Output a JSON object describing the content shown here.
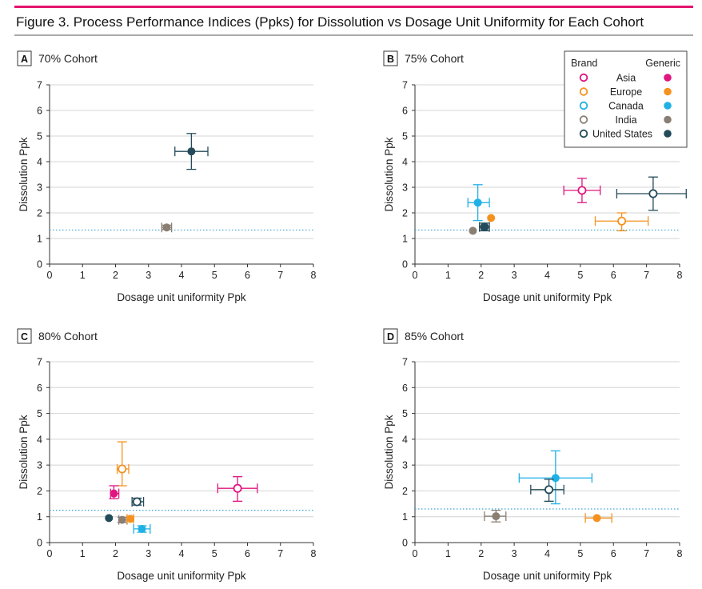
{
  "figure": {
    "title": "Figure 3. Process Performance Indices (Ppks) for Dissolution vs Dosage Unit Uniformity for Each Cohort",
    "accent_color": "#e5146e"
  },
  "legend": {
    "brand_header": "Brand",
    "generic_header": "Generic",
    "entries": [
      {
        "region": "Asia",
        "color": "#e0157f"
      },
      {
        "region": "Europe",
        "color": "#f5921f"
      },
      {
        "region": "Canada",
        "color": "#1fb1e6"
      },
      {
        "region": "India",
        "color": "#8a7f74"
      },
      {
        "region": "United States",
        "color": "#244b5a"
      }
    ]
  },
  "chart_data": [
    {
      "type": "scatter",
      "panel_letter": "A",
      "title": "70% Cohort",
      "xlabel": "Dosage unit uniformity Ppk",
      "ylabel": "Dissolution Ppk",
      "xlim": [
        0,
        8
      ],
      "ylim": [
        0,
        7
      ],
      "xticks": [
        "0",
        "1",
        "2",
        "3",
        "4",
        "5",
        "6",
        "7",
        "8"
      ],
      "yticks": [
        "0",
        "1",
        "2",
        "3",
        "4",
        "5",
        "6",
        "7"
      ],
      "reference_line_y": 1.33,
      "points": [
        {
          "region": "United States",
          "type": "generic",
          "x": 4.3,
          "y": 4.4,
          "xerr": [
            3.8,
            4.8
          ],
          "yerr": [
            3.7,
            5.1
          ]
        },
        {
          "region": "India",
          "type": "generic",
          "x": 3.55,
          "y": 1.43,
          "xerr": [
            3.4,
            3.7
          ],
          "yerr": [
            1.35,
            1.52
          ]
        }
      ]
    },
    {
      "type": "scatter",
      "panel_letter": "B",
      "title": "75% Cohort",
      "xlabel": "Dosage unit uniformity Ppk",
      "ylabel": "Dissolution Ppk",
      "xlim": [
        0,
        8
      ],
      "ylim": [
        0,
        7
      ],
      "xticks": [
        "0",
        "1",
        "2",
        "3",
        "4",
        "5",
        "6",
        "7",
        "8"
      ],
      "yticks": [
        "0",
        "1",
        "2",
        "3",
        "4",
        "5",
        "6",
        "7"
      ],
      "reference_line_y": 1.33,
      "points": [
        {
          "region": "Asia",
          "type": "brand",
          "x": 5.05,
          "y": 2.88,
          "xerr": [
            4.5,
            5.6
          ],
          "yerr": [
            2.4,
            3.35
          ]
        },
        {
          "region": "United States",
          "type": "brand",
          "x": 7.2,
          "y": 2.75,
          "xerr": [
            6.1,
            8.2
          ],
          "yerr": [
            2.1,
            3.4
          ]
        },
        {
          "region": "Europe",
          "type": "brand",
          "x": 6.25,
          "y": 1.68,
          "xerr": [
            5.45,
            7.05
          ],
          "yerr": [
            1.3,
            2.0
          ]
        },
        {
          "region": "Canada",
          "type": "generic",
          "x": 1.9,
          "y": 2.4,
          "xerr": [
            1.6,
            2.25
          ],
          "yerr": [
            1.7,
            3.1
          ]
        },
        {
          "region": "Europe",
          "type": "generic",
          "x": 2.3,
          "y": 1.8,
          "xerr": null,
          "yerr": null
        },
        {
          "region": "United States",
          "type": "brand",
          "x": 2.1,
          "y": 1.45,
          "xerr": [
            1.95,
            2.25
          ],
          "yerr": [
            1.3,
            1.6
          ]
        },
        {
          "region": "United States",
          "type": "generic",
          "x": 2.1,
          "y": 1.45,
          "xerr": null,
          "yerr": null
        },
        {
          "region": "India",
          "type": "generic",
          "x": 1.75,
          "y": 1.3,
          "xerr": null,
          "yerr": null
        }
      ]
    },
    {
      "type": "scatter",
      "panel_letter": "C",
      "title": "80% Cohort",
      "xlabel": "Dosage unit uniformity Ppk",
      "ylabel": "Dissolution Ppk",
      "xlim": [
        0,
        8
      ],
      "ylim": [
        0,
        7
      ],
      "xticks": [
        "0",
        "1",
        "2",
        "3",
        "4",
        "5",
        "6",
        "7",
        "8"
      ],
      "yticks": [
        "0",
        "1",
        "2",
        "3",
        "4",
        "5",
        "6",
        "7"
      ],
      "reference_line_y": 1.25,
      "points": [
        {
          "region": "Asia",
          "type": "brand",
          "x": 5.7,
          "y": 2.1,
          "xerr": [
            5.1,
            6.3
          ],
          "yerr": [
            1.6,
            2.55
          ]
        },
        {
          "region": "Europe",
          "type": "brand",
          "x": 2.2,
          "y": 2.85,
          "xerr": [
            2.05,
            2.4
          ],
          "yerr": [
            2.2,
            3.9
          ]
        },
        {
          "region": "Asia",
          "type": "generic",
          "x": 1.95,
          "y": 1.9,
          "xerr": [
            1.85,
            2.1
          ],
          "yerr": [
            1.7,
            2.2
          ]
        },
        {
          "region": "United States",
          "type": "brand",
          "x": 2.65,
          "y": 1.58,
          "xerr": [
            2.5,
            2.85
          ],
          "yerr": [
            1.45,
            1.72
          ]
        },
        {
          "region": "United States",
          "type": "generic",
          "x": 1.8,
          "y": 0.95,
          "xerr": null,
          "yerr": null
        },
        {
          "region": "India",
          "type": "generic",
          "x": 2.2,
          "y": 0.88,
          "xerr": [
            2.1,
            2.35
          ],
          "yerr": [
            0.78,
            0.98
          ]
        },
        {
          "region": "Europe",
          "type": "generic",
          "x": 2.45,
          "y": 0.92,
          "xerr": [
            2.35,
            2.55
          ],
          "yerr": null
        },
        {
          "region": "Canada",
          "type": "generic",
          "x": 2.8,
          "y": 0.53,
          "xerr": [
            2.55,
            3.05
          ],
          "yerr": [
            0.4,
            0.65
          ]
        }
      ]
    },
    {
      "type": "scatter",
      "panel_letter": "D",
      "title": "85% Cohort",
      "xlabel": "Dosage unit uniformity Ppk",
      "ylabel": "Dissolution Ppk",
      "xlim": [
        0,
        8
      ],
      "ylim": [
        0,
        7
      ],
      "xticks": [
        "0",
        "1",
        "2",
        "3",
        "4",
        "5",
        "6",
        "7",
        "8"
      ],
      "yticks": [
        "0",
        "1",
        "2",
        "3",
        "4",
        "5",
        "6",
        "7"
      ],
      "reference_line_y": 1.3,
      "points": [
        {
          "region": "Canada",
          "type": "generic",
          "x": 4.25,
          "y": 2.5,
          "xerr": [
            3.15,
            5.35
          ],
          "yerr": [
            1.5,
            3.55
          ]
        },
        {
          "region": "United States",
          "type": "brand",
          "x": 4.05,
          "y": 2.05,
          "xerr": [
            3.5,
            4.5
          ],
          "yerr": [
            1.6,
            2.45
          ]
        },
        {
          "region": "India",
          "type": "generic",
          "x": 2.45,
          "y": 1.02,
          "xerr": [
            2.1,
            2.75
          ],
          "yerr": [
            0.8,
            1.25
          ]
        },
        {
          "region": "Europe",
          "type": "generic",
          "x": 5.5,
          "y": 0.95,
          "xerr": [
            5.15,
            5.95
          ],
          "yerr": null
        }
      ]
    }
  ]
}
